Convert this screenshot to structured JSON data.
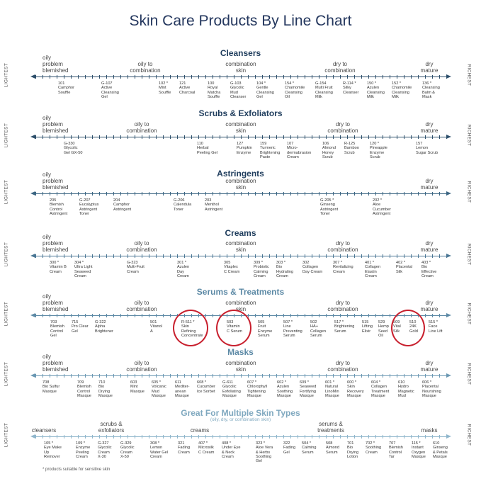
{
  "title": "Skin Care Products By Line Chart",
  "end_labels": {
    "left": "LIGHTEST",
    "right": "RICHEST"
  },
  "footnote": "* products suitable for sensitive skin",
  "colors": {
    "title": "#24375e",
    "heading": "#1e3c5c",
    "line_dark": "#2d4f6b",
    "line_mid": "#5d8aa6",
    "line_light": "#8fb6cc",
    "highlight_circle": "#c8202e"
  },
  "sections": [
    {
      "title": "Cleansers",
      "skin_types": [
        "oily\nproblem\nblemished",
        "oily to\ncombination",
        "combination\nskin",
        "dry to\ncombination",
        "dry\nmature"
      ],
      "products": [
        "101\nCamphor\nSouffle",
        "G-107\nActive\nCleansing\nGel",
        "102 *\nMint\nSouffle",
        "121\nActive\nCharcoal",
        "100\nRoyal\nMatcha\nSouffle",
        "G-103\nGlycolic\nMud\nCleanser",
        "104 *\nGentle\nCleansing\nGel",
        "154 *\nChamomile\nCleansing\nOil",
        "G-154\nMulti Fruit\nCleansing\nMilk",
        "R-114 *\nSilky\nCleanser",
        "150 *\nAzulen\nCleansing\nMilk",
        "152 *\nChamomile\nCleansing\nMilk",
        "136 *\nCleansing\nBalm &\nMask"
      ]
    },
    {
      "title": "Scrubs & Exfoliators",
      "skin_types": [
        "oily\nproblem\nblemished",
        "oily to\ncombination",
        "combination\nskin",
        "dry to\ncombination",
        "dry\nmature"
      ],
      "products": [
        "G-330\nGlycolic\nGel GX-50",
        "110\nHerbal\nPeeling Gel",
        "127\nPumpkin\nEnzyme",
        "159\nTurmeric\nBrightening\nPaste",
        "107\nMicro-\ndermabrasion\nCream",
        "106\nAlmond\nHoney\nScrub",
        "R-125\nBamboo\nScrub",
        "120 *\nPineapple\nEnzyme\nScrub",
        "157\nLemon\nSugar Scrub"
      ]
    },
    {
      "title": "Astringents",
      "skin_types": [
        "oily\nproblem\nblemished",
        "combination\nskin",
        "dry\nmature"
      ],
      "products": [
        "205\nBlemish\nControl\nAstringent",
        "G-207\nEucalyptus\nAstringent\nToner",
        "204\nCamphor\nAstringent",
        "G-206\nCalendula\nToner",
        "203\nMenthol\nAstringent",
        "G-205 *\nGinseng\nAstringent\nToner",
        "202 *\nAloe\nCucumber\nAstringent"
      ]
    },
    {
      "title": "Creams",
      "skin_types": [
        "oily\nproblem\nblemished",
        "oily to\ncombination",
        "combination\nskin",
        "dry to\ncombination",
        "dry\nmature"
      ],
      "products": [
        "300 *\nVitamin B\nCream",
        "304 *\nUltra Light\nSeaweed\nCream",
        "G-323\nMulti-Fruit\nCream",
        "301 *\nAzulen\nDay\nCream",
        "305\nVitaplex\nC Cream",
        "309 *\nProbiotic\nCalming\nCream",
        "303 *\nBio\nHydrating\nCream",
        "302\nCollagen\nDay Cream",
        "307 *\nRevitalizing\nCream",
        "401 *\nCollagen\nElastin\nCream",
        "402 *\nPlacental\nSilk",
        "403 *\nBio\nEffective\nCream"
      ]
    },
    {
      "title": "Serums & Treatments",
      "skin_types": [
        "oily\nproblem\nblemished",
        "oily to\ncombination",
        "combination\nskin",
        "dry to\ncombination",
        "dry\nmature"
      ],
      "products": [
        "703\nBlemish\nControl\nGel",
        "715\nPro Clear\nGel",
        "G-322\nAlpha\nBrightener",
        "501\nVitanol\nA",
        "R-511 *\nSkin\nRefining\nConcentrate",
        "503\nVitamin\nC Serum",
        "505\nFruit\nEnzyme\nSerum",
        "507 *\nLine\nPreventing\nSerum",
        "502\nHA+\nCollagen\nSerum",
        "517 *\nBrightening\nSerum",
        "515\nLifting\nElixir",
        "529\nHemp\nSeed\nOil",
        "509\nVital\nSilk",
        "510\n24K\nGold",
        "515 *\nFace\nLine Lift"
      ]
    },
    {
      "title": "Masks",
      "skin_types": [
        "oily\nproblem\nblemished",
        "oily to\ncombination",
        "combination\nskin",
        "dry to\ncombination",
        "dry\nmature"
      ],
      "products": [
        "708\nBio Sulfur\nMasque",
        "709\nBlemish\nControl\nMasque",
        "710\nBio\nDrying\nMasque",
        "603\nMint\nMasque",
        "605 *\nVolcanic\nMud\nMasque",
        "611\nMediter-\nanean\nMasque",
        "608 *\nCucumber\nIce Sorbet",
        "G-611\nGlycolic\nExfoliating\nMasque",
        "607 *\nChlorophyll\nTightening\nMasque",
        "602 *\nAzulen\nSoothing\nMasque",
        "609 *\nSeaweed\nFortifying\nMasque",
        "601 *\nNatural\nLinoMin\nMasque",
        "600 *\nSkin\nRecovery\nMasque",
        "604 *\nCollagen\nTreatment\nMasque",
        "610\nHydro\nMagnetic\nMud",
        "606 *\nPlacental\nNourishing\nMasque"
      ]
    },
    {
      "title": "Great For Multiple Skin Types",
      "subtitle": "(oily, dry, or combination skin)",
      "skin_types": [
        "cleansers",
        "scrubs &\nexfoliators",
        "creams",
        "serums &\ntreatments",
        "masks"
      ],
      "products": [
        "105 *\nEye Make\nUp\nRemover",
        "109 *\nEnzyme\nPeeling\nCream",
        "G-327\nGlycolic\nCream\nX-30",
        "G-329\nGlycolic\nCream\nX-50",
        "308 *\nLemon\nWater Gel\nCream",
        "321\nFading\nCream",
        "407 *\nMicrosilk\nC Cream",
        "408 *\nUnder Eye\n& Neck\nCream",
        "323 *\nAloe Vera\n& Herbs\nSoothing\nGel",
        "322\nFading\nGel",
        "504 *\nCalming\nSerum",
        "508\nAlmond\nSerum",
        "701\nBio\nDrying\nLotion",
        "702 *\nSoothing\nCream",
        "707\nBlemish\nControl\nTar",
        "115 *\nInstant\nOxygen\nMasque",
        "610\nGinseng\n& Petals\nMasque"
      ]
    }
  ]
}
